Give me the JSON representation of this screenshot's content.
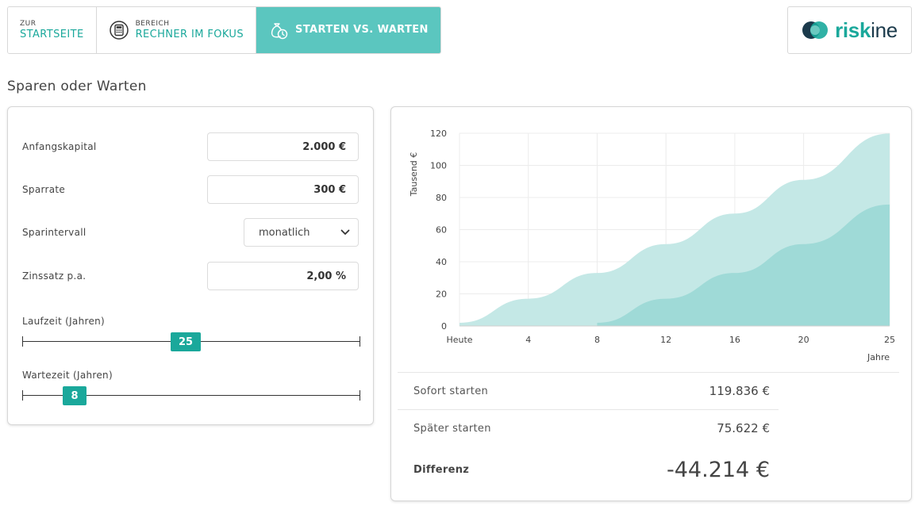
{
  "nav": {
    "items": [
      {
        "small": "ZUR",
        "big": "STARTSEITE"
      },
      {
        "small": "BEREICH",
        "big": "RECHNER IM FOKUS"
      },
      {
        "small": "",
        "big": "STARTEN VS. WARTEN"
      }
    ]
  },
  "logo": {
    "part1": "risk",
    "part2": "ine"
  },
  "page_title": "Sparen oder Warten",
  "form": {
    "anfangskapital": {
      "label": "Anfangskapital",
      "value": "2.000 €"
    },
    "sparrate": {
      "label": "Sparrate",
      "value": "300 €"
    },
    "sparintervall": {
      "label": "Sparintervall",
      "value": "monatlich"
    },
    "zinssatz": {
      "label": "Zinssatz p.a.",
      "value": "2,00 %"
    },
    "laufzeit": {
      "label": "Laufzeit (Jahren)",
      "value": "25",
      "min": 0,
      "max": 50,
      "current": 25
    },
    "wartezeit": {
      "label": "Wartezeit (Jahren)",
      "value": "8",
      "min": 0,
      "max": 50,
      "current": 8
    }
  },
  "results": {
    "sofort": {
      "label": "Sofort starten",
      "value": "119.836 €"
    },
    "spaeter": {
      "label": "Später starten",
      "value": "75.622 €"
    },
    "differenz": {
      "label": "Differenz",
      "value": "-44.214 €"
    }
  },
  "colors": {
    "accent": "#1aa89b",
    "nav_active": "#5bc6bf",
    "area_light": "#c4e8e6",
    "area_dark": "#9fdad7"
  },
  "chart_data": {
    "type": "area",
    "ylabel": "Tausend €",
    "xlabel": "Jahre",
    "xlim": [
      0,
      25
    ],
    "ylim": [
      0,
      120
    ],
    "x_ticks": [
      {
        "value": 0,
        "label": "Heute"
      },
      {
        "value": 4,
        "label": "4"
      },
      {
        "value": 8,
        "label": "8"
      },
      {
        "value": 12,
        "label": "12"
      },
      {
        "value": 16,
        "label": "16"
      },
      {
        "value": 20,
        "label": "20"
      },
      {
        "value": 25,
        "label": "25"
      }
    ],
    "y_ticks": [
      0,
      20,
      40,
      60,
      80,
      100,
      120
    ],
    "grid": true,
    "series": [
      {
        "x": [
          0,
          4,
          8,
          12,
          16,
          20,
          25
        ],
        "values": [
          2,
          17,
          33,
          51,
          70,
          91,
          119.8
        ]
      },
      {
        "x": [
          8,
          12,
          16,
          20,
          25
        ],
        "values": [
          2,
          17,
          33,
          51,
          75.6
        ]
      }
    ]
  }
}
